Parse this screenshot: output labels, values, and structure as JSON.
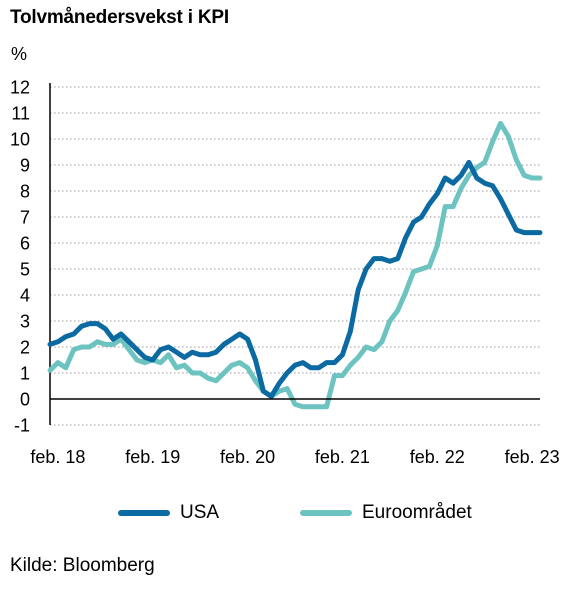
{
  "chart_data": {
    "type": "line",
    "title": "Tolvmånedersvekst i KPI",
    "ylabel": "%",
    "ylim": [
      -1,
      12
    ],
    "yticks": [
      12,
      11,
      10,
      9,
      8,
      7,
      6,
      5,
      4,
      3,
      2,
      1,
      0,
      -1
    ],
    "x_tick_labels": [
      "feb. 18",
      "feb. 19",
      "feb. 20",
      "feb. 21",
      "feb. 22",
      "feb. 23"
    ],
    "x_tick_dates": [
      "2018-02",
      "2019-02",
      "2020-02",
      "2021-02",
      "2022-02",
      "2023-02"
    ],
    "x_range": [
      "2018-01",
      "2023-03"
    ],
    "grid": "horizontal dotted",
    "legend_position": "bottom",
    "series": [
      {
        "name": "USA",
        "color": "#0a6aa1",
        "x": [
          "2018-01",
          "2018-02",
          "2018-03",
          "2018-04",
          "2018-05",
          "2018-06",
          "2018-07",
          "2018-08",
          "2018-09",
          "2018-10",
          "2018-11",
          "2018-12",
          "2019-01",
          "2019-02",
          "2019-03",
          "2019-04",
          "2019-05",
          "2019-06",
          "2019-07",
          "2019-08",
          "2019-09",
          "2019-10",
          "2019-11",
          "2019-12",
          "2020-01",
          "2020-02",
          "2020-03",
          "2020-04",
          "2020-05",
          "2020-06",
          "2020-07",
          "2020-08",
          "2020-09",
          "2020-10",
          "2020-11",
          "2020-12",
          "2021-01",
          "2021-02",
          "2021-03",
          "2021-04",
          "2021-05",
          "2021-06",
          "2021-07",
          "2021-08",
          "2021-09",
          "2021-10",
          "2021-11",
          "2021-12",
          "2022-01",
          "2022-02",
          "2022-03",
          "2022-04",
          "2022-05",
          "2022-06",
          "2022-07",
          "2022-08",
          "2022-09",
          "2022-10",
          "2022-11",
          "2022-12",
          "2023-01",
          "2023-02",
          "2023-03"
        ],
        "values": [
          2.1,
          2.2,
          2.4,
          2.5,
          2.8,
          2.9,
          2.9,
          2.7,
          2.3,
          2.5,
          2.2,
          1.9,
          1.6,
          1.5,
          1.9,
          2.0,
          1.8,
          1.6,
          1.8,
          1.7,
          1.7,
          1.8,
          2.1,
          2.3,
          2.5,
          2.3,
          1.5,
          0.3,
          0.1,
          0.6,
          1.0,
          1.3,
          1.4,
          1.2,
          1.2,
          1.4,
          1.4,
          1.7,
          2.6,
          4.2,
          5.0,
          5.4,
          5.4,
          5.3,
          5.4,
          6.2,
          6.8,
          7.0,
          7.5,
          7.9,
          8.5,
          8.3,
          8.6,
          9.1,
          8.5,
          8.3,
          8.2,
          7.7,
          7.1,
          6.5,
          6.4,
          6.4,
          6.4
        ]
      },
      {
        "name": "Euroområdet",
        "color": "#6cc3c0",
        "x": [
          "2018-01",
          "2018-02",
          "2018-03",
          "2018-04",
          "2018-05",
          "2018-06",
          "2018-07",
          "2018-08",
          "2018-09",
          "2018-10",
          "2018-11",
          "2018-12",
          "2019-01",
          "2019-02",
          "2019-03",
          "2019-04",
          "2019-05",
          "2019-06",
          "2019-07",
          "2019-08",
          "2019-09",
          "2019-10",
          "2019-11",
          "2019-12",
          "2020-01",
          "2020-02",
          "2020-03",
          "2020-04",
          "2020-05",
          "2020-06",
          "2020-07",
          "2020-08",
          "2020-09",
          "2020-10",
          "2020-11",
          "2020-12",
          "2021-01",
          "2021-02",
          "2021-03",
          "2021-04",
          "2021-05",
          "2021-06",
          "2021-07",
          "2021-08",
          "2021-09",
          "2021-10",
          "2021-11",
          "2021-12",
          "2022-01",
          "2022-02",
          "2022-03",
          "2022-04",
          "2022-05",
          "2022-06",
          "2022-07",
          "2022-08",
          "2022-09",
          "2022-10",
          "2022-11",
          "2022-12",
          "2023-01",
          "2023-02",
          "2023-03"
        ],
        "values": [
          1.1,
          1.4,
          1.2,
          1.9,
          2.0,
          2.0,
          2.2,
          2.1,
          2.1,
          2.3,
          1.9,
          1.5,
          1.4,
          1.5,
          1.4,
          1.7,
          1.2,
          1.3,
          1.0,
          1.0,
          0.8,
          0.7,
          1.0,
          1.3,
          1.4,
          1.2,
          0.7,
          0.3,
          0.1,
          0.3,
          0.4,
          -0.2,
          -0.3,
          -0.3,
          -0.3,
          -0.3,
          0.9,
          0.9,
          1.3,
          1.6,
          2.0,
          1.9,
          2.2,
          3.0,
          3.4,
          4.1,
          4.9,
          5.0,
          5.1,
          5.9,
          7.4,
          7.4,
          8.1,
          8.6,
          8.9,
          9.1,
          9.9,
          10.6,
          10.1,
          9.2,
          8.6,
          8.5,
          8.5
        ]
      }
    ]
  },
  "legend": {
    "items": [
      {
        "label": "USA",
        "color": "#0a6aa1"
      },
      {
        "label": "Euroområdet",
        "color": "#6cc3c0"
      }
    ]
  },
  "source": "Kilde: Bloomberg"
}
